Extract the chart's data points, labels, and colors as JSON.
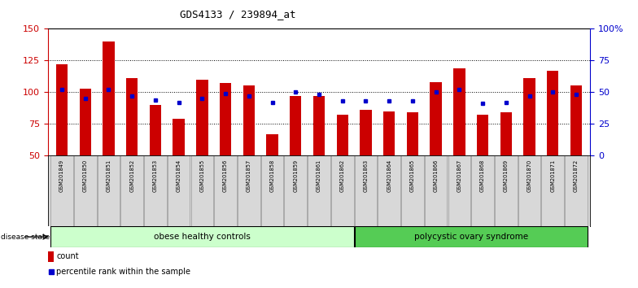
{
  "title": "GDS4133 / 239894_at",
  "samples": [
    "GSM201849",
    "GSM201850",
    "GSM201851",
    "GSM201852",
    "GSM201853",
    "GSM201854",
    "GSM201855",
    "GSM201856",
    "GSM201857",
    "GSM201858",
    "GSM201859",
    "GSM201861",
    "GSM201862",
    "GSM201863",
    "GSM201864",
    "GSM201865",
    "GSM201866",
    "GSM201867",
    "GSM201868",
    "GSM201869",
    "GSM201870",
    "GSM201871",
    "GSM201872"
  ],
  "counts": [
    122,
    103,
    140,
    111,
    90,
    79,
    110,
    107,
    105,
    67,
    97,
    97,
    82,
    86,
    85,
    84,
    108,
    119,
    82,
    84,
    111,
    117,
    105
  ],
  "percentiles": [
    52,
    45,
    52,
    47,
    44,
    42,
    45,
    49,
    47,
    42,
    50,
    48,
    43,
    43,
    43,
    43,
    50,
    52,
    41,
    42,
    47,
    50,
    48
  ],
  "group1_label": "obese healthy controls",
  "group1_count": 13,
  "group2_label": "polycystic ovary syndrome",
  "group2_count": 10,
  "bar_color": "#cc0000",
  "dot_color": "#0000cc",
  "left_ylim": [
    50,
    150
  ],
  "right_ylim": [
    0,
    100
  ],
  "left_yticks": [
    50,
    75,
    100,
    125,
    150
  ],
  "right_yticks": [
    0,
    25,
    50,
    75,
    100
  ],
  "right_yticklabels": [
    "0",
    "25",
    "50",
    "75",
    "100%"
  ],
  "bg_color": "#ffffff",
  "group_bg1": "#ccffcc",
  "group_bg2": "#55cc55",
  "disease_state_label": "disease state",
  "legend_count_label": "count",
  "legend_pct_label": "percentile rank within the sample"
}
